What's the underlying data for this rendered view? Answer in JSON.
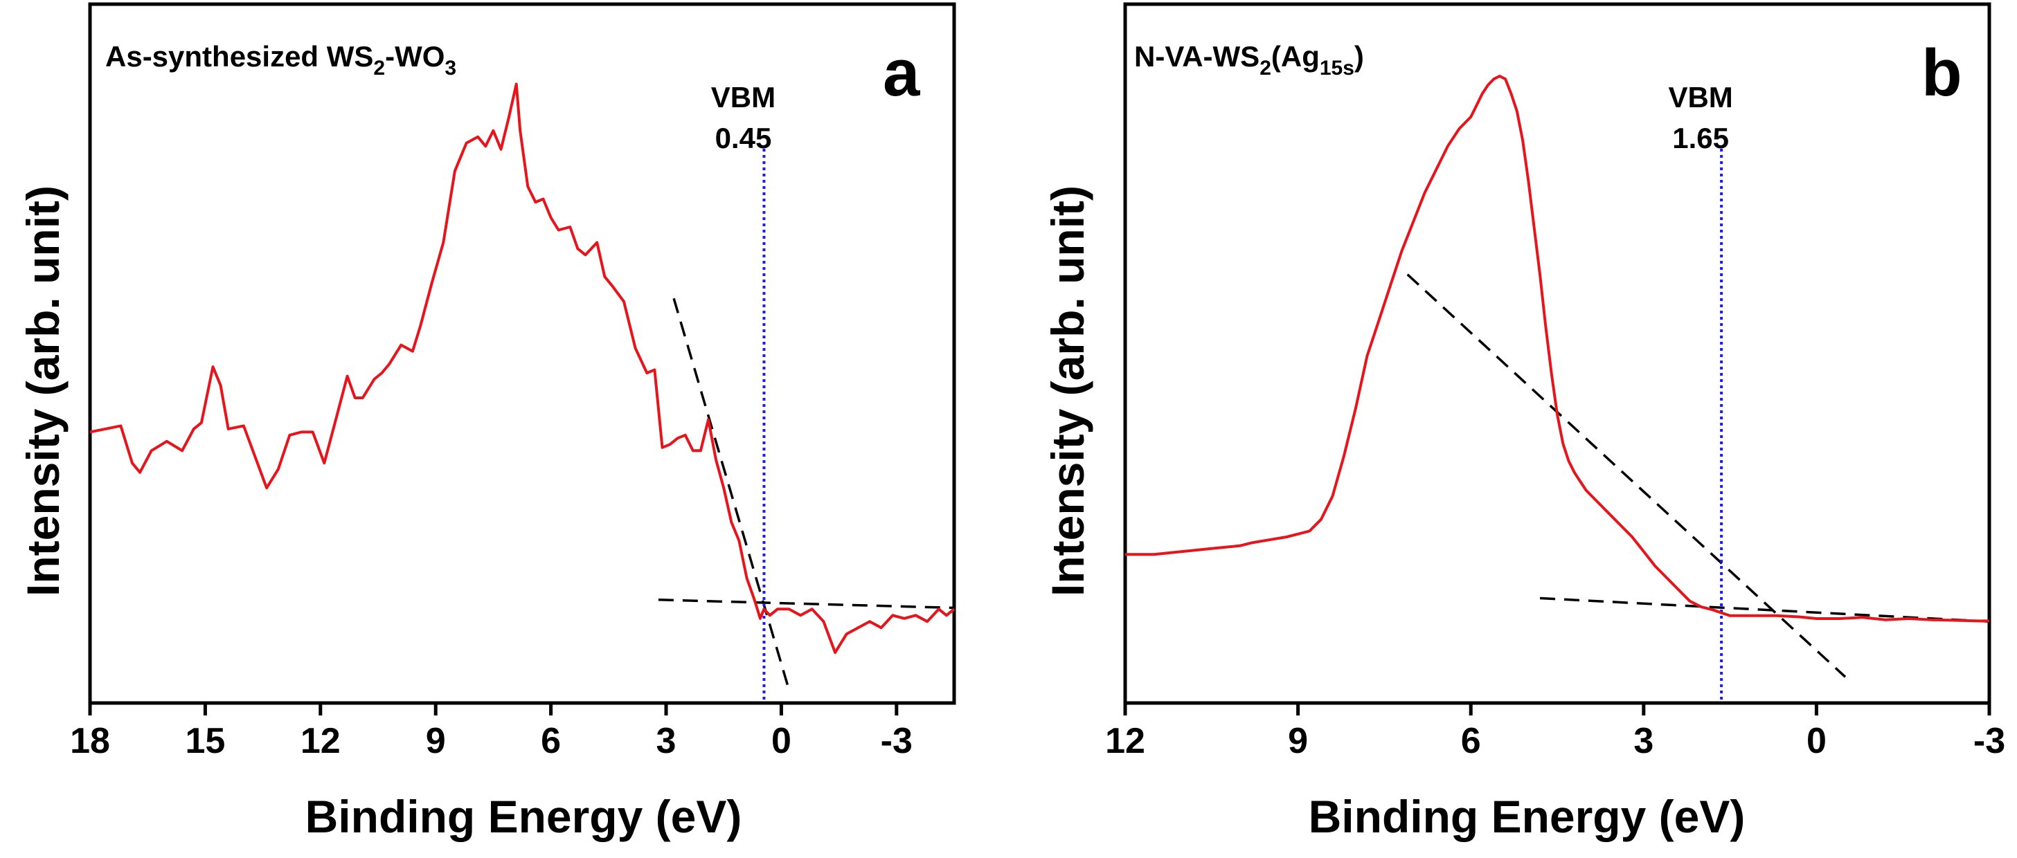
{
  "figure": {
    "colors": {
      "spectrum": "#e8141b",
      "vbm_line": "#1a1aff",
      "fit_line": "#000000",
      "axes": "#000000"
    }
  },
  "chart_data": [
    {
      "type": "line",
      "panel": "a",
      "sample_label": {
        "base": "As-synthesized WS",
        "sub1": "2",
        "mid": "-WO",
        "sub2": "3"
      },
      "xlabel": "Binding Energy (eV)",
      "ylabel": "Intensity (arb. unit)",
      "xlim": [
        18,
        -4.5
      ],
      "xticks": [
        18,
        15,
        12,
        9,
        6,
        3,
        0,
        -3
      ],
      "xtick_labels": [
        "18",
        "15",
        "12",
        "9",
        "6",
        "3",
        "0",
        "-3"
      ],
      "ylim": [
        0,
        100
      ],
      "vbm": {
        "label": "VBM",
        "value": 0.45,
        "value_label": "0.45"
      },
      "series": [
        {
          "name": "spectrum",
          "x": [
            18.0,
            17.6,
            17.2,
            16.9,
            16.7,
            16.4,
            16.0,
            15.6,
            15.3,
            15.1,
            14.8,
            14.6,
            14.4,
            14.0,
            13.7,
            13.4,
            13.1,
            12.8,
            12.5,
            12.2,
            11.9,
            11.6,
            11.3,
            11.1,
            10.9,
            10.6,
            10.4,
            10.2,
            9.9,
            9.6,
            9.4,
            9.1,
            8.8,
            8.5,
            8.2,
            7.9,
            7.7,
            7.5,
            7.3,
            7.1,
            6.9,
            6.8,
            6.6,
            6.4,
            6.2,
            6.0,
            5.8,
            5.5,
            5.3,
            5.1,
            4.8,
            4.6,
            4.4,
            4.1,
            3.8,
            3.5,
            3.3,
            3.1,
            2.9,
            2.7,
            2.5,
            2.3,
            2.1,
            1.9,
            1.7,
            1.5,
            1.3,
            1.1,
            0.9,
            0.7,
            0.55,
            0.45,
            0.3,
            0.1,
            -0.2,
            -0.5,
            -0.8,
            -1.1,
            -1.4,
            -1.7,
            -2.0,
            -2.3,
            -2.6,
            -2.9,
            -3.2,
            -3.5,
            -3.8,
            -4.1,
            -4.3,
            -4.5
          ],
          "y": [
            42.5,
            43,
            43.5,
            37.5,
            36,
            39.5,
            41,
            39.5,
            43,
            44,
            53,
            50,
            43,
            43.5,
            38.5,
            33.5,
            36.5,
            42,
            42.5,
            42.5,
            37.5,
            44.5,
            51.5,
            48,
            48,
            51,
            52,
            53.5,
            56.5,
            55.5,
            59.5,
            66.5,
            73,
            84.5,
            89,
            90,
            88.5,
            91,
            88,
            93,
            98.5,
            91,
            82,
            79.5,
            80,
            77,
            75,
            75.5,
            72,
            71,
            73,
            67.5,
            66,
            63.5,
            56,
            52,
            52.5,
            40,
            40.5,
            41.5,
            42,
            39.5,
            39.5,
            44.5,
            38,
            33.5,
            28,
            25,
            19,
            15.5,
            12.5,
            14,
            13,
            14,
            14,
            13,
            14,
            12,
            7,
            10,
            11,
            12,
            11,
            13,
            12.5,
            13,
            12,
            14,
            13,
            14
          ]
        },
        {
          "name": "baseline fit",
          "style": "dashed",
          "x": [
            3.2,
            -4.5
          ],
          "y": [
            15.5,
            14.2
          ]
        },
        {
          "name": "leading-edge fit",
          "style": "dashed",
          "x": [
            2.8,
            -0.2
          ],
          "y": [
            64,
            1
          ]
        }
      ]
    },
    {
      "type": "line",
      "panel": "b",
      "sample_label": {
        "base": "N-VA-WS",
        "sub1": "2",
        "mid": "(Ag",
        "sub2": "15s",
        "tail": ")"
      },
      "xlabel": "Binding Energy (eV)",
      "ylabel": "Intensity (arb. unit)",
      "xlim": [
        12,
        -3
      ],
      "xticks": [
        12,
        9,
        6,
        3,
        0,
        -3
      ],
      "xtick_labels": [
        "12",
        "9",
        "6",
        "3",
        "0",
        "-3"
      ],
      "ylim": [
        0,
        100
      ],
      "vbm": {
        "label": "VBM",
        "value": 1.65,
        "value_label": "1.65"
      },
      "series": [
        {
          "name": "spectrum",
          "x": [
            12.0,
            11.5,
            11.0,
            10.5,
            10.0,
            9.8,
            9.5,
            9.2,
            9.0,
            8.8,
            8.6,
            8.4,
            8.2,
            8.0,
            7.8,
            7.6,
            7.4,
            7.2,
            7.0,
            6.8,
            6.6,
            6.4,
            6.2,
            6.0,
            5.9,
            5.8,
            5.7,
            5.6,
            5.5,
            5.4,
            5.3,
            5.2,
            5.1,
            5.0,
            4.9,
            4.8,
            4.7,
            4.6,
            4.5,
            4.4,
            4.3,
            4.2,
            4.1,
            4.0,
            3.8,
            3.6,
            3.4,
            3.2,
            3.0,
            2.8,
            2.6,
            2.4,
            2.2,
            2.0,
            1.8,
            1.65,
            1.5,
            1.3,
            1.0,
            0.7,
            0.3,
            0.0,
            -0.4,
            -0.8,
            -1.2,
            -1.6,
            -2.0,
            -2.4,
            -2.8,
            -3.0
          ],
          "y": [
            18,
            18,
            18.5,
            19,
            19.5,
            20,
            20.5,
            21,
            21.5,
            22,
            24,
            28,
            35,
            43,
            52,
            58,
            64,
            70,
            75,
            80,
            84,
            88,
            91,
            93,
            95,
            97,
            98.5,
            99.5,
            100,
            99.5,
            97,
            94,
            89,
            82,
            74,
            66,
            57,
            49,
            42,
            37,
            34,
            32,
            30.5,
            29,
            27,
            25,
            23,
            21,
            18.5,
            16,
            14,
            12,
            10,
            9,
            8.5,
            8,
            7.5,
            7.5,
            7.5,
            7.5,
            7.3,
            7,
            7,
            7.2,
            6.8,
            7,
            6.8,
            6.7,
            6.6,
            6.6
          ]
        },
        {
          "name": "baseline fit",
          "style": "dashed",
          "x": [
            4.8,
            -3.0
          ],
          "y": [
            10.5,
            6.5
          ]
        },
        {
          "name": "leading-edge fit",
          "style": "dashed",
          "x": [
            7.1,
            -0.5
          ],
          "y": [
            66,
            -3
          ]
        }
      ]
    }
  ]
}
